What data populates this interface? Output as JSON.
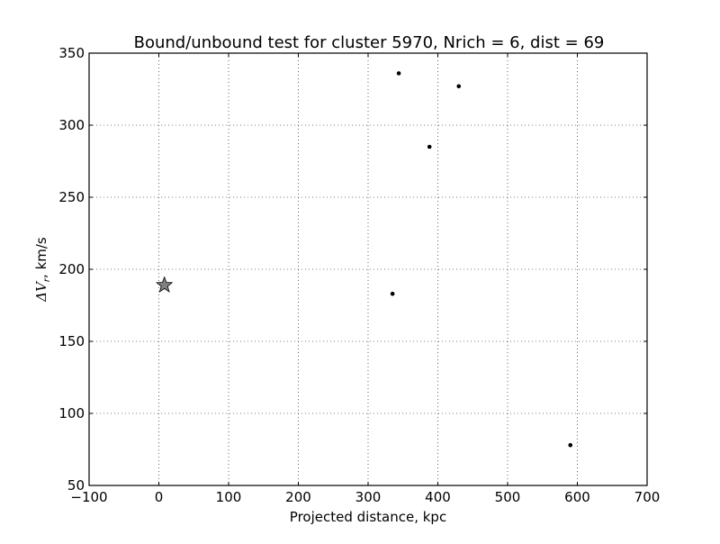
{
  "chart_data": {
    "type": "scatter",
    "title": "Bound/unbound test for cluster 5970, Nrich = 6, dist = 69",
    "xlabel": "Projected distance, kpc",
    "ylabel_symbol": "ΔV",
    "ylabel_subscript": "r",
    "ylabel_unit": ", km/s",
    "xlim": [
      -100,
      700
    ],
    "ylim": [
      50,
      350
    ],
    "xticks": [
      -100,
      0,
      100,
      200,
      300,
      400,
      500,
      600,
      700
    ],
    "xtick_labels": [
      "−100",
      "0",
      "100",
      "200",
      "300",
      "400",
      "500",
      "600",
      "700"
    ],
    "yticks": [
      50,
      100,
      150,
      200,
      250,
      300,
      350
    ],
    "ytick_labels": [
      "50",
      "100",
      "150",
      "200",
      "250",
      "300",
      "350"
    ],
    "grid": true,
    "points": [
      {
        "x": 344,
        "y": 336
      },
      {
        "x": 430,
        "y": 327
      },
      {
        "x": 388,
        "y": 285
      },
      {
        "x": 335,
        "y": 183
      },
      {
        "x": 590,
        "y": 78
      }
    ],
    "star": {
      "x": 8,
      "y": 189
    },
    "point_color": "#000000",
    "star_color": "#808080"
  }
}
